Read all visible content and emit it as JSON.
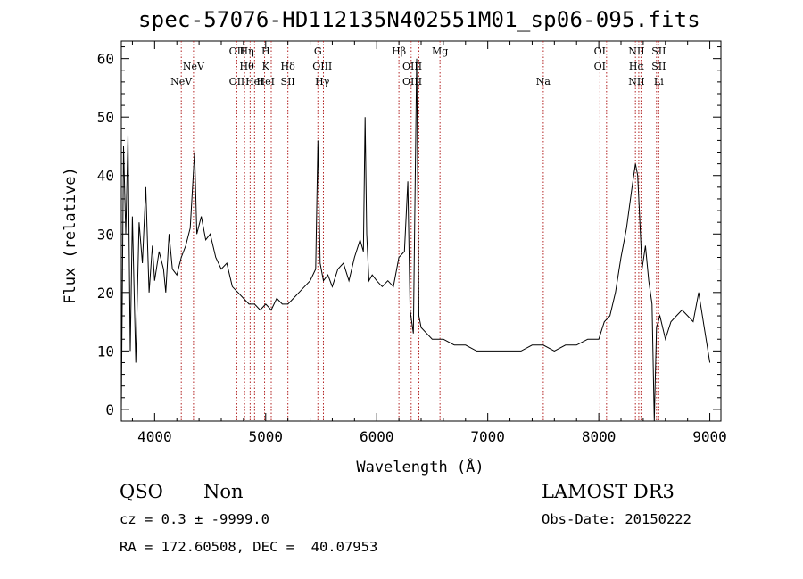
{
  "title": "spec-57076-HD112135N402551M01_sp06-095.fits",
  "footer": {
    "class_label": "QSO",
    "subclass_label": "Non",
    "survey": "LAMOST DR3",
    "cz": "cz = 0.3 ± -9999.0",
    "obs_date": "Obs-Date: 20150222",
    "coords": "RA = 172.60508, DEC =  40.07953"
  },
  "chart_data": {
    "type": "line",
    "title": "spec-57076-HD112135N402551M01_sp06-095.fits",
    "xlabel": "Wavelength (Å)",
    "ylabel": "Flux (relative)",
    "xlim": [
      3700,
      9100
    ],
    "ylim": [
      -2,
      63
    ],
    "xticks": [
      4000,
      5000,
      6000,
      7000,
      8000,
      9000
    ],
    "yticks": [
      0,
      10,
      20,
      30,
      40,
      50,
      60
    ],
    "series": [
      {
        "color": "#000000",
        "x": [
          3700,
          3720,
          3740,
          3760,
          3780,
          3800,
          3830,
          3860,
          3890,
          3920,
          3950,
          3980,
          4000,
          4040,
          4080,
          4100,
          4130,
          4160,
          4200,
          4240,
          4280,
          4320,
          4360,
          4380,
          4420,
          4460,
          4500,
          4550,
          4600,
          4650,
          4700,
          4750,
          4800,
          4850,
          4900,
          4950,
          5000,
          5050,
          5100,
          5150,
          5200,
          5250,
          5300,
          5350,
          5400,
          5450,
          5470,
          5490,
          5520,
          5560,
          5600,
          5650,
          5700,
          5750,
          5800,
          5850,
          5880,
          5895,
          5910,
          5930,
          5960,
          6000,
          6050,
          6100,
          6150,
          6200,
          6250,
          6280,
          6300,
          6330,
          6360,
          6380,
          6400,
          6450,
          6500,
          6600,
          6700,
          6800,
          6900,
          7000,
          7100,
          7200,
          7300,
          7400,
          7500,
          7600,
          7700,
          7800,
          7900,
          8000,
          8050,
          8100,
          8150,
          8200,
          8250,
          8300,
          8330,
          8350,
          8370,
          8390,
          8420,
          8450,
          8480,
          8500,
          8520,
          8550,
          8600,
          8650,
          8700,
          8750,
          8800,
          8850,
          8900,
          8950,
          9000
        ],
        "values": [
          0,
          45,
          30,
          47,
          10,
          33,
          8,
          32,
          25,
          38,
          20,
          28,
          22,
          27,
          24,
          20,
          30,
          24,
          23,
          26,
          28,
          31,
          44,
          30,
          33,
          29,
          30,
          26,
          24,
          25,
          21,
          20,
          19,
          18,
          18,
          17,
          18,
          17,
          19,
          18,
          18,
          19,
          20,
          21,
          22,
          24,
          46,
          25,
          22,
          23,
          21,
          24,
          25,
          22,
          26,
          29,
          27,
          50,
          30,
          22,
          23,
          22,
          21,
          22,
          21,
          26,
          27,
          39,
          17,
          13,
          60,
          16,
          14,
          13,
          12,
          12,
          11,
          11,
          10,
          10,
          10,
          10,
          10,
          11,
          11,
          10,
          11,
          11,
          12,
          12,
          15,
          16,
          20,
          26,
          31,
          38,
          42,
          40,
          32,
          24,
          28,
          22,
          18,
          -2,
          14,
          16,
          12,
          15,
          16,
          17,
          16,
          15,
          20,
          14,
          8
        ]
      }
    ],
    "emission_lines": [
      {
        "label": "NeV",
        "x": 4240,
        "tier": 2
      },
      {
        "label": "NeV",
        "x": 4350,
        "tier": 1
      },
      {
        "label": "OII",
        "x": 4740,
        "tier": 0
      },
      {
        "label": "OII",
        "x": 4740,
        "tier": 2
      },
      {
        "label": "Hη",
        "x": 4830,
        "tier": 0
      },
      {
        "label": "Hθ",
        "x": 4830,
        "tier": 1
      },
      {
        "label": "HeI",
        "x": 4900,
        "tier": 2
      },
      {
        "label": "H",
        "x": 5000,
        "tier": 0
      },
      {
        "label": "K",
        "x": 5000,
        "tier": 1
      },
      {
        "label": "HeI",
        "x": 5000,
        "tier": 2
      },
      {
        "label": "Hδ",
        "x": 5200,
        "tier": 1
      },
      {
        "label": "SII",
        "x": 5200,
        "tier": 2
      },
      {
        "label": "G",
        "x": 5470,
        "tier": 0
      },
      {
        "label": "OIII",
        "x": 5510,
        "tier": 1
      },
      {
        "label": "Hγ",
        "x": 5510,
        "tier": 2
      },
      {
        "label": "Hβ",
        "x": 6200,
        "tier": 0
      },
      {
        "label": "OIII",
        "x": 6320,
        "tier": 1
      },
      {
        "label": "OIII",
        "x": 6320,
        "tier": 2
      },
      {
        "label": "Mg",
        "x": 6570,
        "tier": 0
      },
      {
        "label": "Na",
        "x": 7500,
        "tier": 2
      },
      {
        "label": "OI",
        "x": 8010,
        "tier": 0
      },
      {
        "label": "OI",
        "x": 8010,
        "tier": 1
      },
      {
        "label": "NII",
        "x": 8340,
        "tier": 0
      },
      {
        "label": "Hα",
        "x": 8340,
        "tier": 1
      },
      {
        "label": "NII",
        "x": 8340,
        "tier": 2
      },
      {
        "label": "SII",
        "x": 8540,
        "tier": 0
      },
      {
        "label": "SII",
        "x": 8540,
        "tier": 1
      },
      {
        "label": "Li",
        "x": 8540,
        "tier": 2
      }
    ],
    "line_marker_color": "#b22222",
    "line_marker_x": [
      4240,
      4350,
      4740,
      4810,
      4860,
      4900,
      4990,
      5050,
      5200,
      5470,
      5520,
      6200,
      6310,
      6380,
      6570,
      7500,
      8010,
      8070,
      8330,
      8360,
      8380,
      8520,
      8540
    ]
  }
}
